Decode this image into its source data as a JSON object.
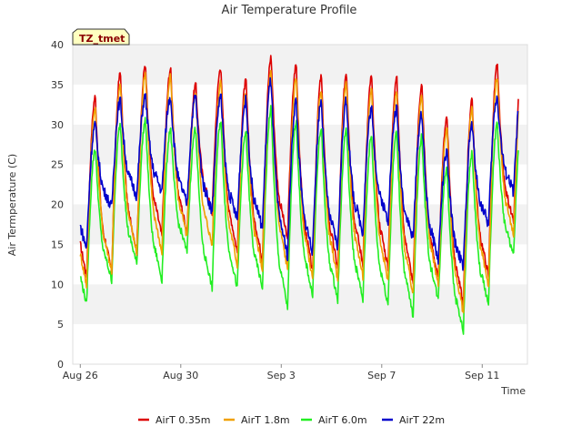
{
  "chart_data": {
    "type": "line",
    "title": "Air Temperature Profile",
    "xlabel": "Time",
    "ylabel": "Air Termperature (C)",
    "badge": "TZ_tmet",
    "x_start": "Aug 26",
    "x_end": "Sep 13",
    "x_ticks": [
      {
        "label": "Aug 26",
        "day": 0
      },
      {
        "label": "Aug 30",
        "day": 4
      },
      {
        "label": "Sep 3",
        "day": 8
      },
      {
        "label": "Sep 7",
        "day": 12
      },
      {
        "label": "Sep 11",
        "day": 16
      }
    ],
    "xlim_days": [
      -0.3,
      17.8
    ],
    "ylim": [
      0,
      40
    ],
    "y_ticks": [
      0,
      5,
      10,
      15,
      20,
      25,
      30,
      35,
      40
    ],
    "grid": "horizontal bands",
    "legend_position": "bottom",
    "series": [
      {
        "name": "AirT 0.35m",
        "color": "#dd0000",
        "daily_max": [
          33.5,
          36.5,
          37.5,
          37,
          35,
          37.2,
          35.5,
          38.5,
          37.5,
          36,
          36.5,
          36,
          36,
          35,
          31,
          33,
          37.5,
          38.5
        ],
        "daily_min": [
          11,
          11.5,
          14,
          16,
          16.5,
          19,
          14,
          13,
          15.5,
          11.5,
          12,
          12.5,
          12,
          10,
          10.5,
          7.5,
          11,
          17.5
        ]
      },
      {
        "name": "AirT 1.8m",
        "color": "#f0a000",
        "daily_max": [
          32,
          35,
          36.5,
          36,
          34,
          35.5,
          34,
          36.5,
          36,
          34.5,
          35,
          34.5,
          34,
          33.5,
          29.5,
          32,
          36,
          37
        ]
      },
      {
        "name": "AirT 6.0m",
        "color": "#22ee22",
        "daily_max": [
          27,
          30,
          30.5,
          29.5,
          29.5,
          30.5,
          29,
          32,
          30.5,
          29.5,
          29.5,
          28.5,
          29,
          28.5,
          24.5,
          26.5,
          30,
          31.5
        ],
        "daily_min": [
          7.5,
          10.5,
          12.5,
          10.5,
          14,
          9.5,
          9.5,
          9.5,
          7,
          8.5,
          8,
          8,
          7.5,
          6,
          8,
          4,
          7.5,
          13.5
        ]
      },
      {
        "name": "AirT 22m",
        "color": "#0000cc",
        "daily_max": [
          30,
          33,
          33.5,
          33.5,
          33.5,
          33.5,
          33,
          35.5,
          33,
          33,
          33,
          32,
          32,
          31.5,
          26.5,
          30,
          33.5,
          35.5
        ],
        "daily_min": [
          14.5,
          19.5,
          21,
          21.5,
          20,
          19,
          18,
          17,
          13.5,
          14,
          14.5,
          16.5,
          18,
          15.5,
          13,
          12,
          17.5,
          21.5
        ]
      }
    ]
  }
}
